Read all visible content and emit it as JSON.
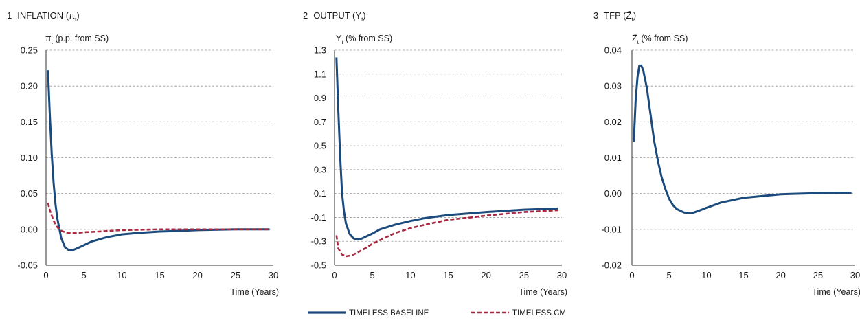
{
  "chart_data": [
    {
      "type": "line",
      "panel_number": "1",
      "title": "INFLATION (π",
      "title_sub": "t",
      "title_close": ")",
      "ylabel_symbol": "π",
      "ylabel_sub": "t",
      "ylabel_rest": " (p.p. from SS)",
      "xlabel": "Time (Years)",
      "xlim": [
        0,
        30
      ],
      "ylim": [
        -0.05,
        0.25
      ],
      "xticks": [
        "0",
        "5",
        "10",
        "15",
        "20",
        "25",
        "30"
      ],
      "yticks": [
        "0.25",
        "0.20",
        "0.15",
        "0.10",
        "0.05",
        "0.00",
        "-0.05"
      ],
      "grid": true,
      "series": [
        {
          "name": "TIMELESS BASELINE",
          "style": "solid",
          "x": [
            0.25,
            0.5,
            0.75,
            1,
            1.25,
            1.5,
            2,
            2.5,
            3,
            3.5,
            4,
            5,
            6,
            8,
            10,
            12,
            15,
            18,
            20,
            25,
            29.5
          ],
          "y": [
            0.222,
            0.16,
            0.105,
            0.065,
            0.035,
            0.015,
            -0.012,
            -0.025,
            -0.029,
            -0.029,
            -0.027,
            -0.022,
            -0.017,
            -0.011,
            -0.007,
            -0.005,
            -0.003,
            -0.002,
            -0.001,
            0.0,
            0.0
          ]
        },
        {
          "name": "TIMELESS CM",
          "style": "dashed",
          "x": [
            0.25,
            0.5,
            1,
            1.5,
            2,
            2.5,
            3,
            4,
            5,
            7,
            10,
            15,
            20,
            25,
            29.5
          ],
          "y": [
            0.037,
            0.027,
            0.012,
            0.003,
            -0.002,
            -0.004,
            -0.005,
            -0.005,
            -0.004,
            -0.003,
            -0.001,
            0.0,
            0.0,
            0.0,
            0.0
          ]
        }
      ]
    },
    {
      "type": "line",
      "panel_number": "2",
      "title": "OUTPUT (Y",
      "title_sub": "t",
      "title_close": ")",
      "ylabel_symbol": "Y",
      "ylabel_sub": "t",
      "ylabel_rest": " (% from SS)",
      "xlabel": "Time (Years)",
      "xlim": [
        0,
        30
      ],
      "ylim": [
        -0.5,
        1.3
      ],
      "xticks": [
        "0",
        "5",
        "10",
        "15",
        "20",
        "25",
        "30"
      ],
      "yticks": [
        "1.3",
        "1.1",
        "0.9",
        "0.7",
        "0.5",
        "0.3",
        "0.1",
        "-0.1",
        "-0.3",
        "-0.5"
      ],
      "grid": true,
      "series": [
        {
          "name": "TIMELESS BASELINE",
          "style": "solid",
          "x": [
            0.25,
            0.5,
            0.75,
            1,
            1.25,
            1.5,
            2,
            2.5,
            3,
            3.5,
            4,
            5,
            6,
            8,
            10,
            12,
            15,
            18,
            20,
            25,
            29.5
          ],
          "y": [
            1.24,
            0.8,
            0.4,
            0.1,
            -0.05,
            -0.15,
            -0.24,
            -0.275,
            -0.285,
            -0.28,
            -0.265,
            -0.235,
            -0.2,
            -0.16,
            -0.13,
            -0.105,
            -0.08,
            -0.065,
            -0.055,
            -0.035,
            -0.025
          ]
        },
        {
          "name": "TIMELESS CM",
          "style": "dashed",
          "x": [
            0.25,
            0.5,
            1,
            1.5,
            2,
            2.5,
            3,
            4,
            5,
            6,
            8,
            10,
            12,
            15,
            18,
            20,
            25,
            29.5
          ],
          "y": [
            -0.25,
            -0.36,
            -0.41,
            -0.425,
            -0.42,
            -0.41,
            -0.395,
            -0.36,
            -0.32,
            -0.29,
            -0.23,
            -0.19,
            -0.16,
            -0.12,
            -0.1,
            -0.085,
            -0.055,
            -0.04
          ]
        }
      ]
    },
    {
      "type": "line",
      "panel_number": "3",
      "title": "TFP (",
      "title_symbol": "Z̃",
      "title_sub": "t",
      "title_close": ")",
      "ylabel_symbol": "Z̃",
      "ylabel_sub": "t",
      "ylabel_rest": " (% from SS)",
      "xlabel": "Time (Years)",
      "xlim": [
        0,
        30
      ],
      "ylim": [
        -0.02,
        0.04
      ],
      "xticks": [
        "0",
        "5",
        "10",
        "15",
        "20",
        "25",
        "30"
      ],
      "yticks": [
        "0.04",
        "0.03",
        "0.02",
        "0.01",
        "0.00",
        "-0.01",
        "-0.02"
      ],
      "grid": true,
      "series": [
        {
          "name": "TIMELESS BASELINE",
          "style": "solid",
          "x": [
            0.25,
            0.5,
            0.75,
            1,
            1.25,
            1.5,
            2,
            2.5,
            3,
            3.5,
            4,
            4.5,
            5,
            5.5,
            6,
            7,
            8,
            9,
            10,
            12,
            15,
            20,
            25,
            29.5
          ],
          "y": [
            0.0145,
            0.026,
            0.0325,
            0.0357,
            0.0357,
            0.0345,
            0.0295,
            0.022,
            0.0145,
            0.009,
            0.0045,
            0.0012,
            -0.0015,
            -0.0032,
            -0.0043,
            -0.0053,
            -0.0055,
            -0.0048,
            -0.004,
            -0.0025,
            -0.0012,
            -0.0002,
            0.0001,
            0.0002
          ]
        }
      ]
    }
  ],
  "legend": {
    "items": [
      {
        "label": "TIMELESS BASELINE",
        "style": "solid",
        "color": "#1b4b7c"
      },
      {
        "label": "TIMELESS CM",
        "style": "dashed",
        "color": "#a7283f"
      }
    ]
  },
  "colors": {
    "baseline": "#1b4b7c",
    "cm": "#a7283f"
  }
}
